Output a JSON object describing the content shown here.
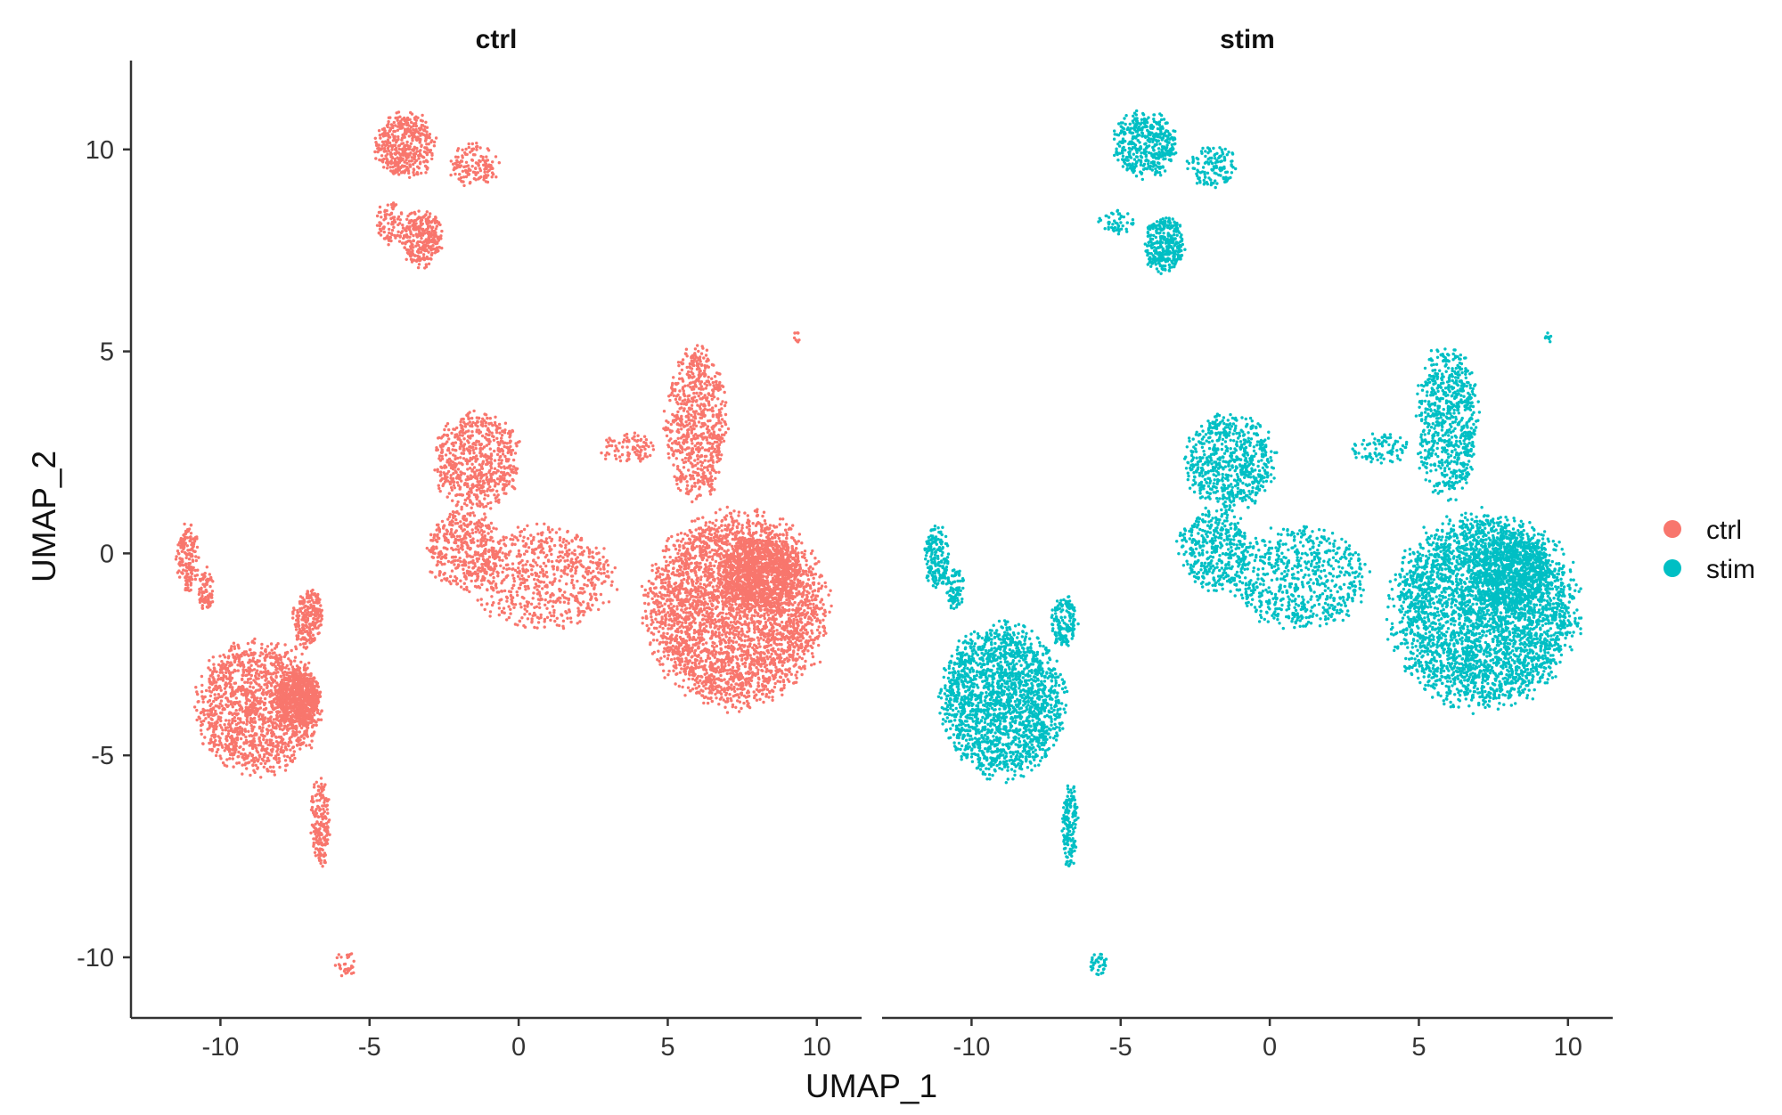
{
  "chart_data": {
    "type": "scatter",
    "facets": [
      "ctrl",
      "stim"
    ],
    "xlabel": "UMAP_1",
    "ylabel": "UMAP_2",
    "xlim": [
      -13,
      11.5
    ],
    "ylim": [
      -11.5,
      12.2
    ],
    "xticks": [
      -10,
      -5,
      0,
      5,
      10
    ],
    "yticks": [
      -10,
      -5,
      0,
      5,
      10
    ],
    "grid": false,
    "legend_position": "right",
    "series": [
      {
        "name": "ctrl",
        "color": "#F8766D"
      },
      {
        "name": "stim",
        "color": "#00BFC4"
      }
    ],
    "clusters": {
      "ctrl": [
        {
          "x": [
            -4.9,
            -2.7
          ],
          "y": [
            9.2,
            11.0
          ],
          "n": 420
        },
        {
          "x": [
            -2.4,
            -0.6
          ],
          "y": [
            9.0,
            10.2
          ],
          "n": 140
        },
        {
          "x": [
            -4.0,
            -2.5
          ],
          "y": [
            7.0,
            8.6
          ],
          "n": 300
        },
        {
          "x": [
            -4.8,
            -3.8
          ],
          "y": [
            7.6,
            8.8
          ],
          "n": 80
        },
        {
          "x": [
            -11.5,
            -10.7
          ],
          "y": [
            -1.0,
            0.8
          ],
          "n": 170
        },
        {
          "x": [
            -10.8,
            -10.2
          ],
          "y": [
            -1.5,
            -0.3
          ],
          "n": 80
        },
        {
          "x": [
            -11.0,
            -6.4
          ],
          "y": [
            -5.6,
            -2.0
          ],
          "n": 1500
        },
        {
          "x": [
            -8.2,
            -6.6
          ],
          "y": [
            -4.4,
            -2.8
          ],
          "n": 650
        },
        {
          "x": [
            -7.6,
            -6.5
          ],
          "y": [
            -2.4,
            -0.8
          ],
          "n": 230
        },
        {
          "x": [
            -7.0,
            -6.3
          ],
          "y": [
            -7.9,
            -5.4
          ],
          "n": 180
        },
        {
          "x": [
            -6.2,
            -5.4
          ],
          "y": [
            -10.5,
            -9.8
          ],
          "n": 35
        },
        {
          "x": [
            -3.0,
            0.2
          ],
          "y": [
            1.0,
            3.6
          ],
          "n": 650
        },
        {
          "x": [
            -3.2,
            -0.5
          ],
          "y": [
            -1.0,
            1.2
          ],
          "n": 400
        },
        {
          "x": [
            -1.8,
            3.5
          ],
          "y": [
            -2.0,
            0.8
          ],
          "n": 650
        },
        {
          "x": [
            2.6,
            4.8
          ],
          "y": [
            2.2,
            3.0
          ],
          "n": 90
        },
        {
          "x": [
            4.8,
            7.1
          ],
          "y": [
            1.2,
            5.3
          ],
          "n": 700
        },
        {
          "x": [
            4.0,
            10.6
          ],
          "y": [
            -4.0,
            1.2
          ],
          "n": 3400
        },
        {
          "x": [
            6.6,
            9.6
          ],
          "y": [
            -1.5,
            0.5
          ],
          "n": 900
        },
        {
          "x": [
            9.2,
            9.5
          ],
          "y": [
            5.2,
            5.5
          ],
          "n": 8
        }
      ],
      "stim": [
        {
          "x": [
            -5.4,
            -3.0
          ],
          "y": [
            9.2,
            11.0
          ],
          "n": 420
        },
        {
          "x": [
            -2.8,
            -1.0
          ],
          "y": [
            9.0,
            10.2
          ],
          "n": 130
        },
        {
          "x": [
            -4.3,
            -2.8
          ],
          "y": [
            6.9,
            8.4
          ],
          "n": 320
        },
        {
          "x": [
            -5.8,
            -4.4
          ],
          "y": [
            7.9,
            8.5
          ],
          "n": 50
        },
        {
          "x": [
            -11.6,
            -10.7
          ],
          "y": [
            -1.0,
            0.8
          ],
          "n": 170
        },
        {
          "x": [
            -10.9,
            -10.2
          ],
          "y": [
            -1.5,
            -0.3
          ],
          "n": 80
        },
        {
          "x": [
            -11.2,
            -6.7
          ],
          "y": [
            -5.7,
            -1.6
          ],
          "n": 1900
        },
        {
          "x": [
            -7.4,
            -6.4
          ],
          "y": [
            -2.4,
            -1.0
          ],
          "n": 150
        },
        {
          "x": [
            -7.0,
            -6.4
          ],
          "y": [
            -7.9,
            -5.6
          ],
          "n": 150
        },
        {
          "x": [
            -6.1,
            -5.4
          ],
          "y": [
            -10.5,
            -9.8
          ],
          "n": 35
        },
        {
          "x": [
            -3.0,
            0.3
          ],
          "y": [
            1.0,
            3.6
          ],
          "n": 650
        },
        {
          "x": [
            -3.2,
            -0.5
          ],
          "y": [
            -1.0,
            1.2
          ],
          "n": 400
        },
        {
          "x": [
            -1.5,
            3.5
          ],
          "y": [
            -2.0,
            0.8
          ],
          "n": 650
        },
        {
          "x": [
            2.6,
            4.8
          ],
          "y": [
            2.2,
            3.0
          ],
          "n": 90
        },
        {
          "x": [
            4.8,
            7.1
          ],
          "y": [
            1.2,
            5.3
          ],
          "n": 700
        },
        {
          "x": [
            3.8,
            10.6
          ],
          "y": [
            -4.0,
            1.2
          ],
          "n": 3400
        },
        {
          "x": [
            6.6,
            9.6
          ],
          "y": [
            -1.5,
            0.5
          ],
          "n": 700
        },
        {
          "x": [
            9.2,
            9.5
          ],
          "y": [
            5.2,
            5.5
          ],
          "n": 8
        }
      ]
    }
  }
}
